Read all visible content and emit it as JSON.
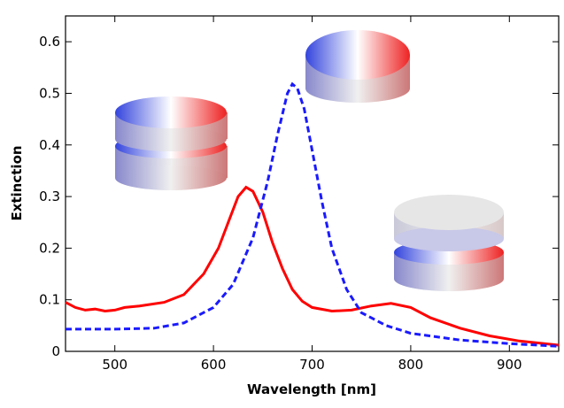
{
  "chart_data": {
    "type": "line",
    "xlabel": "Wavelength [nm]",
    "ylabel": "Extinction",
    "xlim": [
      450,
      950
    ],
    "xticks": [
      500,
      600,
      700,
      800,
      900
    ],
    "ylim": [
      0,
      0.65
    ],
    "yticks": [
      0,
      0.1,
      0.2,
      0.3,
      0.4,
      0.5,
      0.6
    ],
    "series": [
      {
        "color": "#ff0000",
        "dash": false,
        "x": [
          450,
          460,
          470,
          480,
          490,
          500,
          510,
          525,
          550,
          570,
          590,
          605,
          615,
          625,
          633,
          640,
          650,
          660,
          670,
          680,
          690,
          700,
          720,
          740,
          760,
          780,
          800,
          820,
          850,
          880,
          910,
          950
        ],
        "values": [
          0.095,
          0.085,
          0.08,
          0.082,
          0.078,
          0.08,
          0.085,
          0.088,
          0.095,
          0.11,
          0.15,
          0.2,
          0.25,
          0.3,
          0.318,
          0.31,
          0.27,
          0.21,
          0.16,
          0.12,
          0.097,
          0.085,
          0.078,
          0.08,
          0.088,
          0.093,
          0.085,
          0.065,
          0.045,
          0.03,
          0.02,
          0.012
        ]
      },
      {
        "color": "#1a1aff",
        "dash": true,
        "x": [
          450,
          500,
          540,
          570,
          600,
          620,
          640,
          655,
          665,
          675,
          680,
          685,
          692,
          700,
          710,
          720,
          735,
          750,
          775,
          800,
          850,
          900,
          950
        ],
        "values": [
          0.043,
          0.043,
          0.045,
          0.055,
          0.085,
          0.13,
          0.22,
          0.33,
          0.42,
          0.5,
          0.518,
          0.51,
          0.47,
          0.39,
          0.29,
          0.2,
          0.12,
          0.075,
          0.05,
          0.035,
          0.022,
          0.015,
          0.01
        ]
      }
    ]
  }
}
